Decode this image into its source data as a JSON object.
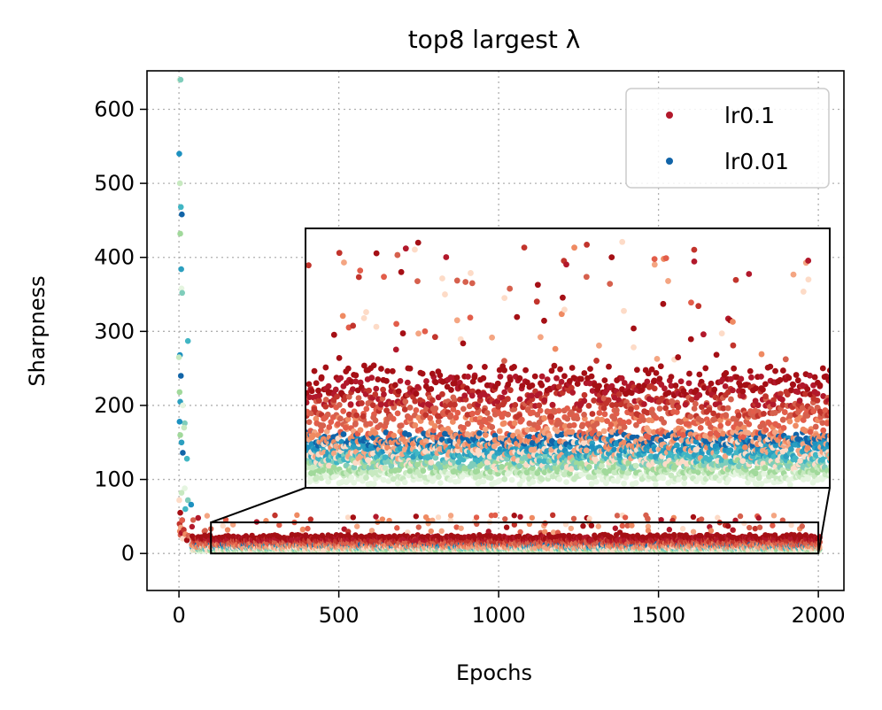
{
  "chart_data": {
    "type": "scatter",
    "title": "top8 largest λ",
    "xlabel": "Epochs",
    "ylabel": "Sharpness",
    "xlim": [
      -100,
      2080
    ],
    "ylim": [
      -50,
      652
    ],
    "xticks": [
      0,
      500,
      1000,
      1500,
      2000
    ],
    "yticks": [
      0,
      100,
      200,
      300,
      400,
      500,
      600
    ],
    "grid": true,
    "legend_position": "top-right",
    "series": [
      {
        "name": "lr0.1",
        "color": "#b2182b",
        "shades": [
          "#fddbc7",
          "#f4a582",
          "#ef8a62",
          "#e25d4a",
          "#d6604d",
          "#c2342c",
          "#b2182b",
          "#a50f15"
        ],
        "early_points": [
          [
            1,
            72
          ],
          [
            2,
            40
          ],
          [
            3,
            30
          ],
          [
            4,
            55
          ],
          [
            5,
            25
          ],
          [
            6,
            35
          ],
          [
            8,
            28
          ],
          [
            10,
            45
          ],
          [
            12,
            20
          ],
          [
            15,
            32
          ],
          [
            20,
            26
          ],
          [
            25,
            18
          ],
          [
            30,
            24
          ],
          [
            40,
            22
          ],
          [
            60,
            48
          ],
          [
            80,
            30
          ]
        ]
      },
      {
        "name": "lr0.01",
        "color": "#1164a8",
        "shades": [
          "#e5f5e0",
          "#c7e9c0",
          "#a1d99b",
          "#7fcdbb",
          "#41b6c4",
          "#2c9fbf",
          "#1d91c0",
          "#1164a8"
        ],
        "early_points": [
          [
            2,
            640
          ],
          [
            5,
            640
          ],
          [
            1,
            540
          ],
          [
            3,
            500
          ],
          [
            6,
            468
          ],
          [
            9,
            458
          ],
          [
            4,
            432
          ],
          [
            7,
            384
          ],
          [
            8,
            358
          ],
          [
            10,
            352
          ],
          [
            3,
            268
          ],
          [
            0,
            265
          ],
          [
            28,
            287
          ],
          [
            6,
            240
          ],
          [
            2,
            218
          ],
          [
            4,
            205
          ],
          [
            12,
            200
          ],
          [
            18,
            176
          ],
          [
            2,
            178
          ],
          [
            16,
            170
          ],
          [
            25,
            128
          ],
          [
            12,
            136
          ],
          [
            4,
            160
          ],
          [
            8,
            150
          ],
          [
            18,
            88
          ],
          [
            28,
            72
          ],
          [
            38,
            66
          ],
          [
            8,
            82
          ],
          [
            20,
            60
          ],
          [
            10,
            45
          ]
        ]
      }
    ],
    "inset": {
      "source_region": {
        "x": [
          100,
          2000
        ],
        "y": [
          0,
          42
        ]
      },
      "noise_seed": 7
    }
  }
}
